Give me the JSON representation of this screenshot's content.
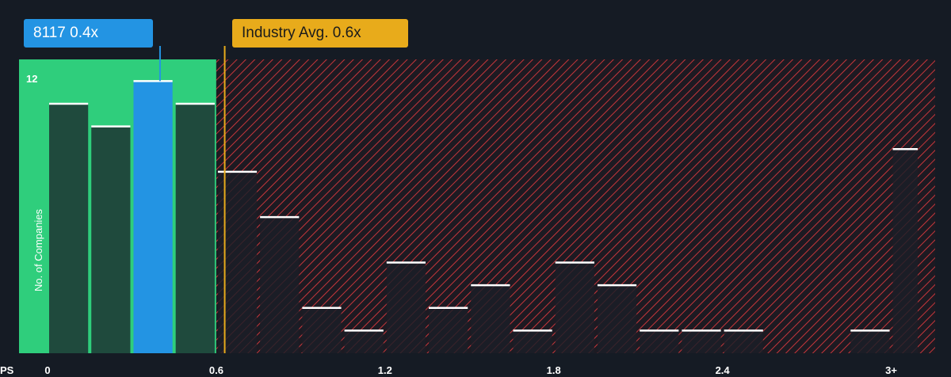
{
  "chart_data": {
    "type": "bar",
    "x_unit": "PS",
    "ylabel": "No. of Companies",
    "yticks": [
      12
    ],
    "ylim": [
      0,
      12.5
    ],
    "xlim": [
      0,
      3.1
    ],
    "xticks": [
      "0",
      "0.6",
      "1.2",
      "1.8",
      "2.4",
      "3+"
    ],
    "bins": [
      {
        "x0": 0.0,
        "x1": 0.15,
        "value": 11,
        "group": "company_range"
      },
      {
        "x0": 0.15,
        "x1": 0.3,
        "value": 10,
        "group": "company_range"
      },
      {
        "x0": 0.3,
        "x1": 0.45,
        "value": 12,
        "group": "company"
      },
      {
        "x0": 0.45,
        "x1": 0.6,
        "value": 11,
        "group": "company_range"
      },
      {
        "x0": 0.6,
        "x1": 0.75,
        "value": 8,
        "group": "above"
      },
      {
        "x0": 0.75,
        "x1": 0.9,
        "value": 6,
        "group": "above"
      },
      {
        "x0": 0.9,
        "x1": 1.05,
        "value": 2,
        "group": "above"
      },
      {
        "x0": 1.05,
        "x1": 1.2,
        "value": 1,
        "group": "above"
      },
      {
        "x0": 1.2,
        "x1": 1.35,
        "value": 4,
        "group": "above"
      },
      {
        "x0": 1.35,
        "x1": 1.5,
        "value": 2,
        "group": "above"
      },
      {
        "x0": 1.5,
        "x1": 1.65,
        "value": 3,
        "group": "above"
      },
      {
        "x0": 1.65,
        "x1": 1.8,
        "value": 1,
        "group": "above"
      },
      {
        "x0": 1.8,
        "x1": 1.95,
        "value": 4,
        "group": "above"
      },
      {
        "x0": 1.95,
        "x1": 2.1,
        "value": 3,
        "group": "above"
      },
      {
        "x0": 2.1,
        "x1": 2.25,
        "value": 1,
        "group": "above"
      },
      {
        "x0": 2.25,
        "x1": 2.4,
        "value": 1,
        "group": "above"
      },
      {
        "x0": 2.4,
        "x1": 2.55,
        "value": 1,
        "group": "above"
      },
      {
        "x0": 2.55,
        "x1": 2.7,
        "value": 0,
        "group": "above"
      },
      {
        "x0": 2.7,
        "x1": 2.85,
        "value": 0,
        "group": "above"
      },
      {
        "x0": 2.85,
        "x1": 3.0,
        "value": 1,
        "group": "above"
      },
      {
        "x0": 3.0,
        "x1": 3.1,
        "value": 9,
        "group": "above"
      }
    ],
    "company": {
      "label": "8117 0.4x",
      "value": 0.4
    },
    "industry_avg": {
      "label": "Industry Avg. 0.6x",
      "value": 0.63
    },
    "colors": {
      "background": "#151b24",
      "company_zone": "#2fce7c",
      "company_bar": "#2394e3",
      "range_bar": "#1f4a3d",
      "above_bar": "#1b1f27",
      "hatch": "#c6363b",
      "industry": "#e8ab1b",
      "cap": "#ffffff"
    }
  }
}
